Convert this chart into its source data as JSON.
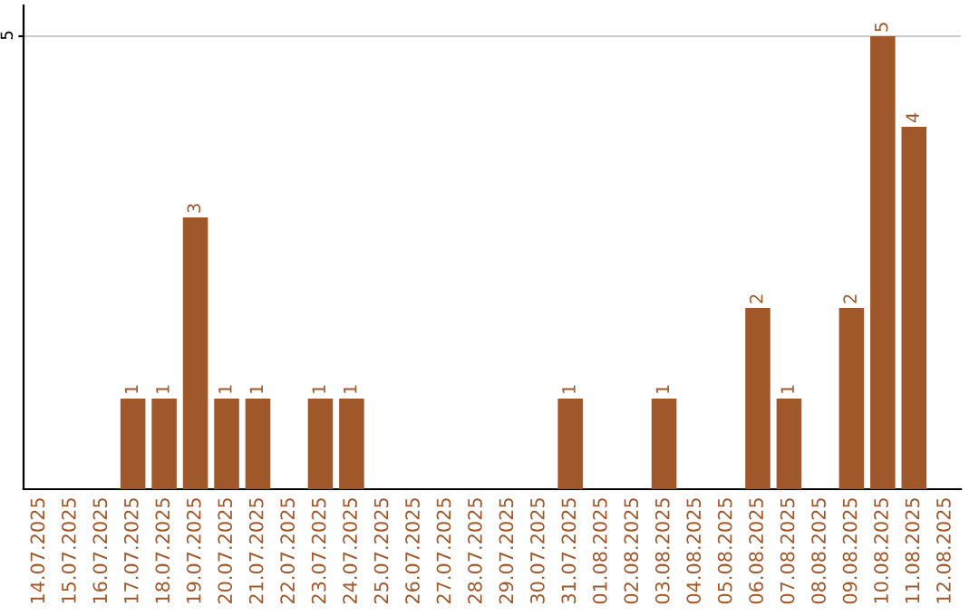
{
  "chart_data": {
    "type": "bar",
    "categories": [
      "14.07.2025",
      "15.07.2025",
      "16.07.2025",
      "17.07.2025",
      "18.07.2025",
      "19.07.2025",
      "20.07.2025",
      "21.07.2025",
      "22.07.2025",
      "23.07.2025",
      "24.07.2025",
      "25.07.2025",
      "26.07.2025",
      "27.07.2025",
      "28.07.2025",
      "29.07.2025",
      "30.07.2025",
      "31.07.2025",
      "01.08.2025",
      "02.08.2025",
      "03.08.2025",
      "04.08.2025",
      "05.08.2025",
      "06.08.2025",
      "07.08.2025",
      "08.08.2025",
      "09.08.2025",
      "10.08.2025",
      "11.08.2025",
      "12.08.2025"
    ],
    "values": [
      0,
      0,
      0,
      1,
      1,
      3,
      1,
      1,
      0,
      1,
      1,
      0,
      0,
      0,
      0,
      0,
      0,
      1,
      0,
      0,
      1,
      0,
      0,
      2,
      1,
      0,
      2,
      5,
      4,
      0
    ],
    "color": "#a0572a",
    "value_labels": [
      null,
      null,
      null,
      "1",
      "1",
      "3",
      "1",
      "1",
      null,
      "1",
      "1",
      null,
      null,
      null,
      null,
      null,
      null,
      "1",
      null,
      null,
      "1",
      null,
      null,
      "2",
      "1",
      null,
      "2",
      "5",
      "4",
      null
    ],
    "ylim": [
      0,
      5.34
    ],
    "yticks": [
      5
    ],
    "grid": "y",
    "legend": false
  }
}
